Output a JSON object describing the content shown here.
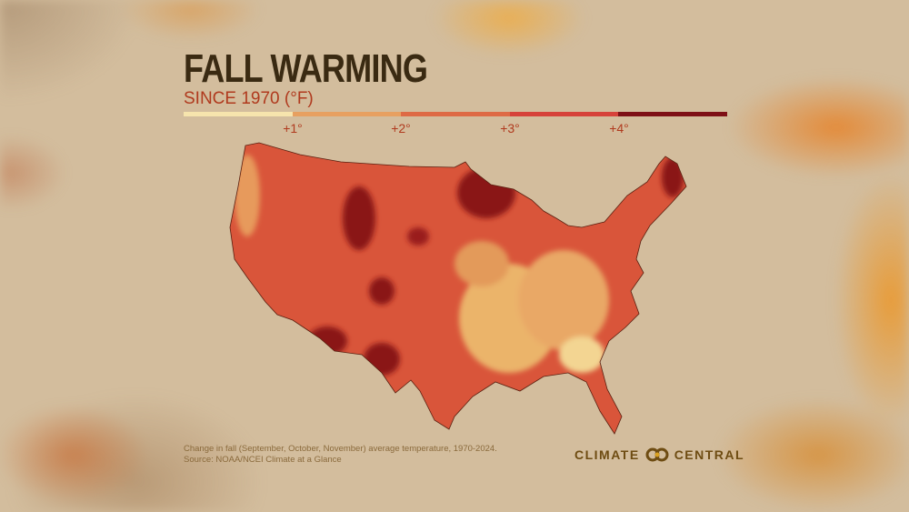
{
  "title": "FALL WARMING",
  "subtitle": "SINCE 1970 (°F)",
  "legend": {
    "colors": [
      "#f6e4ad",
      "#e7a060",
      "#de6a45",
      "#d6423a",
      "#7e1016"
    ],
    "ticks": [
      "+1°",
      "+2°",
      "+3°",
      "+4°"
    ]
  },
  "map": {
    "region": "Contiguous United States, by county",
    "colors": {
      "base": "#d9553a",
      "high": "#8a1418",
      "low": "#ebb46a",
      "lowest": "#f3d592"
    }
  },
  "footnote": {
    "line1": "Change in fall (September, October, November) average temperature, 1970-2024.",
    "line2": "Source: NOAA/NCEI Climate at a Glance"
  },
  "logo": {
    "left": "CLIMATE",
    "right": "CENTRAL"
  }
}
